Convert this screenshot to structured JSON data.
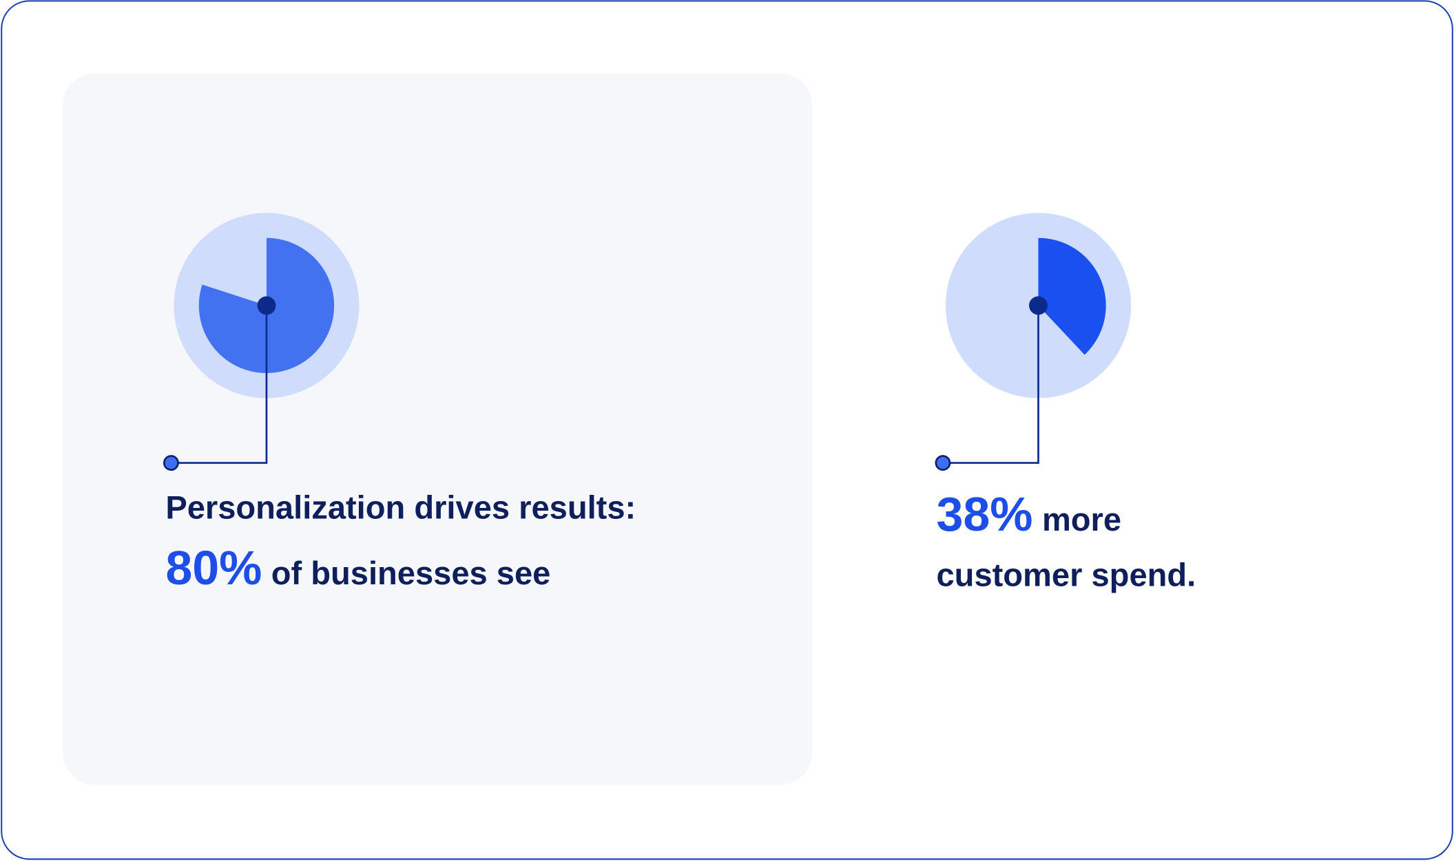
{
  "chart_data": [
    {
      "type": "pie",
      "values": [
        80
      ],
      "value_labels": [
        "80%"
      ],
      "color": "#4272f0",
      "heading": "Personalization drives results:",
      "caption": "of businesses see"
    },
    {
      "type": "pie",
      "values": [
        38
      ],
      "value_labels": [
        "38%"
      ],
      "color": "#1a4ff0",
      "caption": "more",
      "caption_line2": "customer spend."
    }
  ]
}
